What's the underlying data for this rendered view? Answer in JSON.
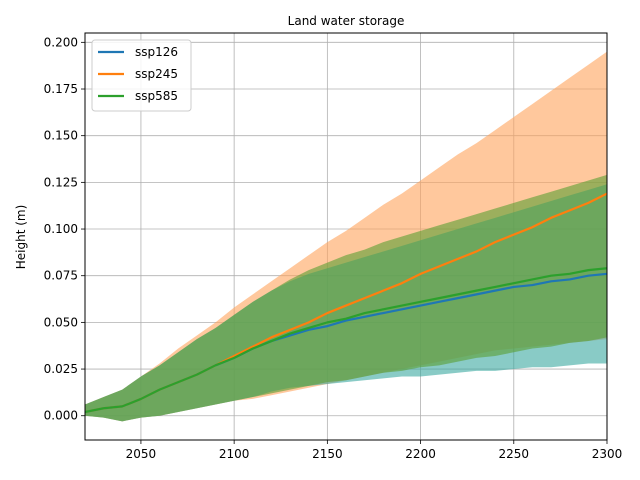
{
  "chart_data": {
    "type": "line",
    "title": "Land water storage",
    "xlabel": "",
    "ylabel": "Height (m)",
    "xlim": [
      2020,
      2300
    ],
    "ylim": [
      -0.013,
      0.205
    ],
    "xticks": [
      2050,
      2100,
      2150,
      2200,
      2250,
      2300
    ],
    "yticks": [
      0.0,
      0.025,
      0.05,
      0.075,
      0.1,
      0.125,
      0.15,
      0.175,
      0.2
    ],
    "ytick_labels": [
      "0.000",
      "0.025",
      "0.050",
      "0.075",
      "0.100",
      "0.125",
      "0.150",
      "0.175",
      "0.200"
    ],
    "grid": true,
    "legend_position": "top-left",
    "x": [
      2020,
      2030,
      2040,
      2050,
      2060,
      2070,
      2080,
      2090,
      2100,
      2110,
      2120,
      2130,
      2140,
      2150,
      2160,
      2170,
      2180,
      2190,
      2200,
      2210,
      2220,
      2230,
      2240,
      2250,
      2260,
      2270,
      2280,
      2290,
      2300
    ],
    "series": [
      {
        "name": "ssp126",
        "color": "#1f77b4",
        "band_color": "#3aa8a0",
        "values": [
          0.002,
          0.004,
          0.005,
          0.009,
          0.014,
          0.018,
          0.022,
          0.027,
          0.031,
          0.036,
          0.04,
          0.043,
          0.046,
          0.048,
          0.051,
          0.053,
          0.055,
          0.057,
          0.059,
          0.061,
          0.063,
          0.065,
          0.067,
          0.069,
          0.07,
          0.072,
          0.073,
          0.075,
          0.076
        ],
        "lower": [
          0.0,
          -0.001,
          -0.003,
          -0.001,
          0.0,
          0.002,
          0.004,
          0.006,
          0.008,
          0.01,
          0.013,
          0.015,
          0.016,
          0.017,
          0.018,
          0.019,
          0.02,
          0.021,
          0.021,
          0.022,
          0.023,
          0.024,
          0.024,
          0.025,
          0.026,
          0.026,
          0.027,
          0.028,
          0.028
        ],
        "upper": [
          0.006,
          0.01,
          0.014,
          0.021,
          0.027,
          0.034,
          0.041,
          0.047,
          0.054,
          0.061,
          0.067,
          0.072,
          0.076,
          0.079,
          0.082,
          0.085,
          0.088,
          0.091,
          0.094,
          0.097,
          0.1,
          0.103,
          0.106,
          0.109,
          0.112,
          0.115,
          0.118,
          0.121,
          0.124
        ]
      },
      {
        "name": "ssp245",
        "color": "#ff7f0e",
        "band_color": "#ffa35c",
        "values": [
          0.002,
          0.004,
          0.005,
          0.009,
          0.014,
          0.018,
          0.022,
          0.027,
          0.032,
          0.037,
          0.042,
          0.046,
          0.05,
          0.055,
          0.059,
          0.063,
          0.067,
          0.071,
          0.076,
          0.08,
          0.084,
          0.088,
          0.093,
          0.097,
          0.101,
          0.106,
          0.11,
          0.114,
          0.119
        ],
        "lower": [
          0.0,
          -0.001,
          -0.003,
          -0.001,
          0.0,
          0.002,
          0.004,
          0.006,
          0.008,
          0.009,
          0.011,
          0.013,
          0.015,
          0.017,
          0.019,
          0.021,
          0.023,
          0.025,
          0.027,
          0.029,
          0.031,
          0.033,
          0.035,
          0.036,
          0.037,
          0.038,
          0.039,
          0.04,
          0.041
        ],
        "upper": [
          0.006,
          0.01,
          0.014,
          0.021,
          0.028,
          0.036,
          0.043,
          0.05,
          0.058,
          0.065,
          0.072,
          0.079,
          0.086,
          0.093,
          0.099,
          0.106,
          0.113,
          0.119,
          0.126,
          0.133,
          0.14,
          0.146,
          0.153,
          0.16,
          0.167,
          0.174,
          0.181,
          0.188,
          0.195
        ]
      },
      {
        "name": "ssp585",
        "color": "#2ca02c",
        "band_color": "#5a9e32",
        "values": [
          0.002,
          0.004,
          0.005,
          0.009,
          0.014,
          0.018,
          0.022,
          0.027,
          0.031,
          0.036,
          0.04,
          0.044,
          0.047,
          0.05,
          0.052,
          0.055,
          0.057,
          0.059,
          0.061,
          0.063,
          0.065,
          0.067,
          0.069,
          0.071,
          0.073,
          0.075,
          0.076,
          0.078,
          0.079
        ],
        "lower": [
          0.0,
          -0.001,
          -0.003,
          -0.001,
          0.0,
          0.002,
          0.004,
          0.006,
          0.008,
          0.01,
          0.012,
          0.014,
          0.016,
          0.018,
          0.019,
          0.021,
          0.023,
          0.024,
          0.026,
          0.027,
          0.029,
          0.031,
          0.032,
          0.034,
          0.036,
          0.037,
          0.039,
          0.04,
          0.042
        ],
        "upper": [
          0.006,
          0.01,
          0.014,
          0.021,
          0.027,
          0.034,
          0.041,
          0.047,
          0.054,
          0.061,
          0.067,
          0.073,
          0.078,
          0.082,
          0.086,
          0.089,
          0.093,
          0.096,
          0.099,
          0.102,
          0.105,
          0.108,
          0.111,
          0.114,
          0.117,
          0.12,
          0.123,
          0.126,
          0.129
        ]
      }
    ]
  }
}
